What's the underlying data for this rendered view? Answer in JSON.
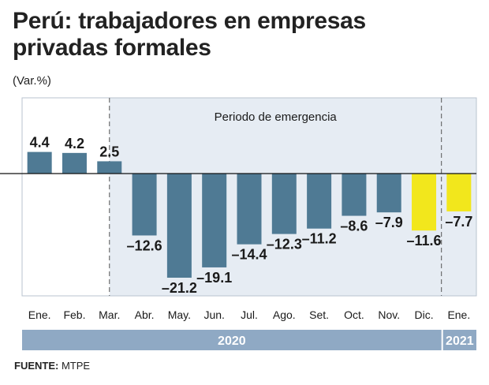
{
  "title_line1": "Perú: trabajadores en empresas",
  "title_line2": "privadas formales",
  "unit": "(Var.%)",
  "source_label": "FUENTE:",
  "source_value": "MTPE",
  "colors": {
    "bar_default": "#4f7a94",
    "bar_highlight": "#f2e71c",
    "shade": "#e6ecf3",
    "year_band": "#8fa9c4"
  },
  "chart_data": {
    "type": "bar",
    "categories": [
      "Ene.",
      "Feb.",
      "Mar.",
      "Abr.",
      "May.",
      "Jun.",
      "Jul.",
      "Ago.",
      "Set.",
      "Oct.",
      "Nov.",
      "Dic.",
      "Ene."
    ],
    "values": [
      4.4,
      4.2,
      2.5,
      -12.6,
      -21.2,
      -19.1,
      -14.4,
      -12.3,
      -11.2,
      -8.6,
      -7.9,
      -11.6,
      -7.7
    ],
    "value_labels": [
      "4.4",
      "4.2",
      "2.5",
      "–12.6",
      "–21.2",
      "–19.1",
      "–14.4",
      "–12.3",
      "–11.2",
      "–8.6",
      "–7.9",
      "–11.6",
      "–7.7"
    ],
    "highlight": [
      false,
      false,
      false,
      false,
      false,
      false,
      false,
      false,
      false,
      false,
      false,
      true,
      true
    ],
    "ylim": [
      -24,
      9
    ],
    "annotation": "Periodo de emergencia",
    "shaded_from_index": 2,
    "years": [
      {
        "label": "2020",
        "from_index": 0,
        "to_index": 11
      },
      {
        "label": "2021",
        "from_index": 12,
        "to_index": 12
      }
    ]
  }
}
